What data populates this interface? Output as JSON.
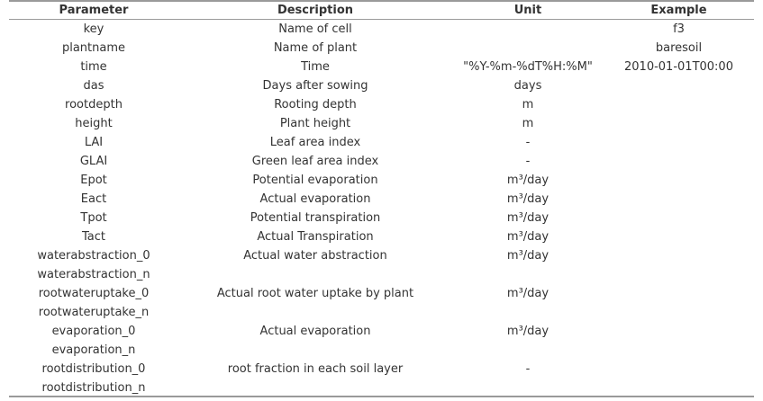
{
  "headers": {
    "parameter": "Parameter",
    "description": "Description",
    "unit": "Unit",
    "example": "Example"
  },
  "rows": [
    {
      "parameter": "key",
      "description": "Name of cell",
      "unit": "",
      "example": "f3"
    },
    {
      "parameter": "plantname",
      "description": "Name of plant",
      "unit": "",
      "example": "baresoil"
    },
    {
      "parameter": "time",
      "description": "Time",
      "unit": "\"%Y-%m-%dT%H:%M\"",
      "example": "2010-01-01T00:00"
    },
    {
      "parameter": "das",
      "description": "Days after sowing",
      "unit": "days",
      "example": ""
    },
    {
      "parameter": "rootdepth",
      "description": "Rooting depth",
      "unit": "m",
      "example": ""
    },
    {
      "parameter": "height",
      "description": "Plant height",
      "unit": "m",
      "example": ""
    },
    {
      "parameter": "LAI",
      "description": "Leaf area index",
      "unit": "-",
      "example": ""
    },
    {
      "parameter": "GLAI",
      "description": "Green leaf area index",
      "unit": "-",
      "example": ""
    },
    {
      "parameter": "Epot",
      "description": "Potential evaporation",
      "unit": "m³/day",
      "example": ""
    },
    {
      "parameter": "Eact",
      "description": "Actual evaporation",
      "unit": "m³/day",
      "example": ""
    },
    {
      "parameter": "Tpot",
      "description": "Potential transpiration",
      "unit": "m³/day",
      "example": ""
    },
    {
      "parameter": "Tact",
      "description": "Actual Transpiration",
      "unit": "m³/day",
      "example": ""
    },
    {
      "parameter": "waterabstraction_0",
      "description": "Actual water abstraction",
      "unit": "m³/day",
      "example": ""
    },
    {
      "parameter": "waterabstraction_n",
      "description": "",
      "unit": "",
      "example": ""
    },
    {
      "parameter": "rootwateruptake_0",
      "description": "Actual root water uptake by plant",
      "unit": "m³/day",
      "example": ""
    },
    {
      "parameter": "rootwateruptake_n",
      "description": "",
      "unit": "",
      "example": ""
    },
    {
      "parameter": "evaporation_0",
      "description": "Actual evaporation",
      "unit": "m³/day",
      "example": ""
    },
    {
      "parameter": "evaporation_n",
      "description": "",
      "unit": "",
      "example": ""
    },
    {
      "parameter": "rootdistribution_0",
      "description": "root fraction in each soil layer",
      "unit": "-",
      "example": ""
    },
    {
      "parameter": "rootdistribution_n",
      "description": "",
      "unit": "",
      "example": ""
    }
  ]
}
